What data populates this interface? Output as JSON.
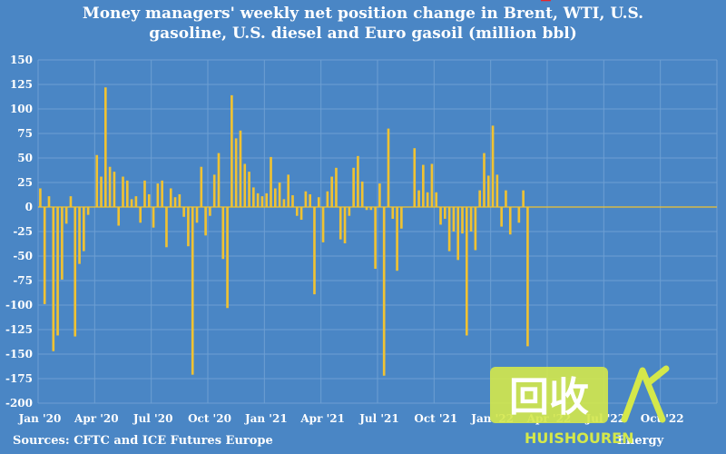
{
  "chart_data": {
    "type": "bar",
    "title_lines": [
      "Money managers' weekly net position change in Brent, WTI, U.S.",
      "gasoline, U.S. diesel and Euro gasoil (million bbl)"
    ],
    "ylim": [
      -200,
      150
    ],
    "y_ticks": [
      150,
      125,
      100,
      75,
      50,
      25,
      0,
      -25,
      -50,
      -75,
      -100,
      -125,
      -150,
      -175,
      -200
    ],
    "x_ticks": [
      "Jan '20",
      "Apr '20",
      "Jul '20",
      "Oct '20",
      "Jan '21",
      "Apr '21",
      "Jul '21",
      "Oct '21",
      "Jan '22",
      "Apr '22",
      "Jul '22",
      "Oct '22"
    ],
    "xlim_weeks": 156,
    "values": [
      19,
      -99,
      11,
      -147,
      -131,
      -74,
      -17,
      11,
      -132,
      -58,
      -45,
      -8,
      0,
      53,
      31,
      122,
      41,
      36,
      -19,
      31,
      27,
      8,
      11,
      -16,
      27,
      13,
      -21,
      24,
      27,
      -41,
      19,
      10,
      13,
      -10,
      -40,
      -171,
      -16,
      41,
      -29,
      -9,
      33,
      55,
      -53,
      -103,
      114,
      70,
      78,
      44,
      36,
      20,
      14,
      11,
      14,
      51,
      19,
      25,
      8,
      33,
      12,
      -9,
      -13,
      16,
      13,
      -89,
      10,
      -36,
      16,
      31,
      40,
      -33,
      -37,
      -9,
      40,
      52,
      26,
      -3,
      -3,
      -63,
      24,
      -172,
      80,
      -12,
      -65,
      -22,
      0,
      0,
      60,
      17,
      43,
      15,
      44,
      15,
      -18,
      -12,
      -45,
      -25,
      -54,
      -27,
      -131,
      -25,
      -44,
      17,
      55,
      32,
      83,
      33,
      -20,
      17,
      -28,
      0,
      -16,
      17,
      -142
    ],
    "bar_color": "#f0c232",
    "background_color": "#4a86c5",
    "grid": true,
    "annotation": {
      "target_index": 114,
      "color": "#e8262a"
    }
  },
  "footer": {
    "source": "Sources: CFTC and ICE Futures Europe",
    "credit": "Energy"
  },
  "watermark": {
    "chinese": "回收",
    "latin": "HUISHOUREN",
    "mark_color": "#d4e84a"
  }
}
